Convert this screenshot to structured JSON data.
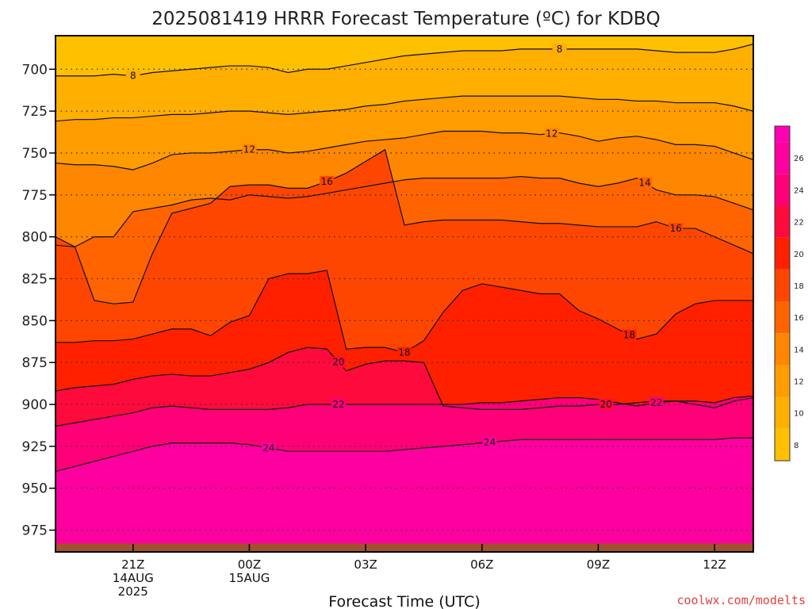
{
  "chart_data": {
    "type": "contour",
    "title": "2025081419 HRRR Forecast Temperature (ºC) for KDBQ",
    "xlabel": "Forecast Time (UTC)",
    "ylabel": "",
    "credit": "coolwx.com/modelts",
    "y_axis": {
      "quantity": "pressure (hPa)",
      "inverted": true,
      "range": [
        680,
        988
      ],
      "ticks": [
        700,
        725,
        750,
        775,
        800,
        825,
        850,
        875,
        900,
        925,
        950,
        975
      ]
    },
    "x_axis": {
      "range_hours": [
        -2,
        16
      ],
      "ticks": [
        {
          "hours": 0,
          "lines": [
            "21Z",
            "14AUG",
            "2025"
          ]
        },
        {
          "hours": 3,
          "lines": [
            "00Z",
            "15AUG"
          ]
        },
        {
          "hours": 6,
          "lines": [
            "03Z"
          ]
        },
        {
          "hours": 9,
          "lines": [
            "06Z"
          ]
        },
        {
          "hours": 12,
          "lines": [
            "09Z"
          ]
        },
        {
          "hours": 15,
          "lines": [
            "12Z"
          ]
        }
      ]
    },
    "gridlines": "dotted, at each pressure tick",
    "ground_color": "#A0522D",
    "ground_pressure": 983,
    "colorbar": {
      "ticks": [
        8,
        10,
        12,
        14,
        16,
        18,
        20,
        22,
        24,
        26
      ],
      "bands": [
        {
          "range": [
            7,
            9
          ],
          "color": "#FFC000"
        },
        {
          "range": [
            9,
            11
          ],
          "color": "#FFAF00"
        },
        {
          "range": [
            11,
            13
          ],
          "color": "#FF9C00"
        },
        {
          "range": [
            13,
            15
          ],
          "color": "#FF8600"
        },
        {
          "range": [
            15,
            17
          ],
          "color": "#FF6400"
        },
        {
          "range": [
            17,
            19
          ],
          "color": "#FF4600"
        },
        {
          "range": [
            19,
            21
          ],
          "color": "#FF2000"
        },
        {
          "range": [
            21,
            23
          ],
          "color": "#FF0A3C"
        },
        {
          "range": [
            23,
            25
          ],
          "color": "#FF0078"
        },
        {
          "range": [
            25,
            27
          ],
          "color": "#FF00A0"
        },
        {
          "range": [
            27,
            28
          ],
          "color": "#FF00B4"
        }
      ]
    },
    "x_hours": [
      -2,
      -1.5,
      -1,
      -0.5,
      0,
      0.5,
      1,
      1.5,
      2,
      2.5,
      3,
      3.5,
      4,
      4.5,
      5,
      5.5,
      6,
      6.5,
      7,
      7.5,
      8,
      8.5,
      9,
      9.5,
      10,
      10.5,
      11,
      11.5,
      12,
      12.5,
      13,
      13.5,
      14,
      14.5,
      15,
      15.5,
      16
    ],
    "isotherms": [
      {
        "value": 8,
        "label_hours": [
          0,
          11
        ],
        "pressures": [
          704,
          704,
          704,
          703,
          704,
          702,
          701,
          700,
          699,
          698,
          698,
          699,
          702,
          700,
          700,
          698,
          696,
          694,
          692,
          691,
          690,
          689,
          689,
          689,
          688,
          688,
          688,
          688,
          688,
          688,
          688,
          689,
          690,
          690,
          690,
          688,
          685
        ]
      },
      {
        "value": 10,
        "label_hours": [],
        "pressures": [
          731,
          730,
          730,
          729,
          729,
          728,
          727,
          727,
          726,
          725,
          725,
          726,
          727,
          726,
          725,
          724,
          722,
          721,
          719,
          718,
          717,
          716,
          716,
          716,
          716,
          716,
          716,
          717,
          718,
          718,
          719,
          719,
          720,
          720,
          720,
          722,
          725
        ]
      },
      {
        "value": 12,
        "label_hours": [
          3,
          10.8
        ],
        "pressures": [
          756,
          757,
          757,
          758,
          760,
          756,
          751,
          750,
          750,
          749,
          748,
          748,
          750,
          749,
          747,
          745,
          743,
          742,
          741,
          739,
          737,
          737,
          737,
          738,
          738,
          739,
          738,
          740,
          743,
          741,
          740,
          742,
          745,
          745,
          746,
          750,
          754
        ]
      },
      {
        "value": 14,
        "label_hours": [
          13.2
        ],
        "pressures": [
          805,
          806,
          800,
          800,
          785,
          783,
          781,
          778,
          777,
          778,
          775,
          776,
          777,
          776,
          774,
          772,
          770,
          768,
          766,
          765,
          765,
          765,
          765,
          765,
          764,
          765,
          765,
          768,
          770,
          768,
          765,
          772,
          775,
          775,
          776,
          780,
          784
        ]
      },
      {
        "value": 16,
        "label_hours": [
          5,
          14
        ],
        "pressures": [
          800,
          806,
          838,
          840,
          839,
          810,
          786,
          783,
          780,
          770,
          769,
          769,
          771,
          771,
          767,
          762,
          755,
          748,
          793,
          791,
          790,
          790,
          790,
          790,
          791,
          792,
          792,
          793,
          794,
          794,
          794,
          791,
          795,
          795,
          800,
          805,
          810
        ]
      },
      {
        "value": 18,
        "label_hours": [
          7,
          12.8
        ],
        "pressures": [
          863,
          863,
          862,
          862,
          861,
          858,
          855,
          855,
          859,
          851,
          847,
          825,
          822,
          822,
          820,
          867,
          866,
          866,
          869,
          862,
          845,
          832,
          828,
          830,
          832,
          834,
          834,
          844,
          849,
          855,
          861,
          858,
          846,
          840,
          838,
          838,
          838
        ]
      },
      {
        "value": 20,
        "label_hours": [
          5.3,
          12.2,
          17.6
        ],
        "pressures": [
          892,
          890,
          889,
          888,
          885,
          883,
          882,
          883,
          883,
          881,
          879,
          875,
          869,
          866,
          867,
          880,
          876,
          874,
          874,
          875,
          901,
          902,
          903,
          903,
          903,
          902,
          901,
          901,
          900,
          900,
          899,
          898,
          898,
          900,
          902,
          898,
          896
        ]
      },
      {
        "value": 22,
        "label_hours": [
          5.3,
          13.5
        ],
        "pressures": [
          913,
          911,
          909,
          907,
          905,
          902,
          901,
          902,
          903,
          903,
          903,
          903,
          902,
          900,
          900,
          900,
          900,
          900,
          900,
          900,
          900,
          900,
          899,
          899,
          898,
          897,
          896,
          896,
          897,
          899,
          901,
          899,
          898,
          898,
          899,
          896,
          895
        ]
      },
      {
        "value": 24,
        "label_hours": [
          3.5,
          9.2
        ],
        "pressures": [
          940,
          937,
          934,
          931,
          928,
          925,
          923,
          923,
          923,
          923,
          924,
          926,
          928,
          928,
          928,
          928,
          928,
          928,
          927,
          926,
          925,
          924,
          923,
          922,
          921,
          921,
          921,
          921,
          921,
          921,
          921,
          921,
          921,
          921,
          921,
          920,
          920
        ]
      }
    ]
  }
}
